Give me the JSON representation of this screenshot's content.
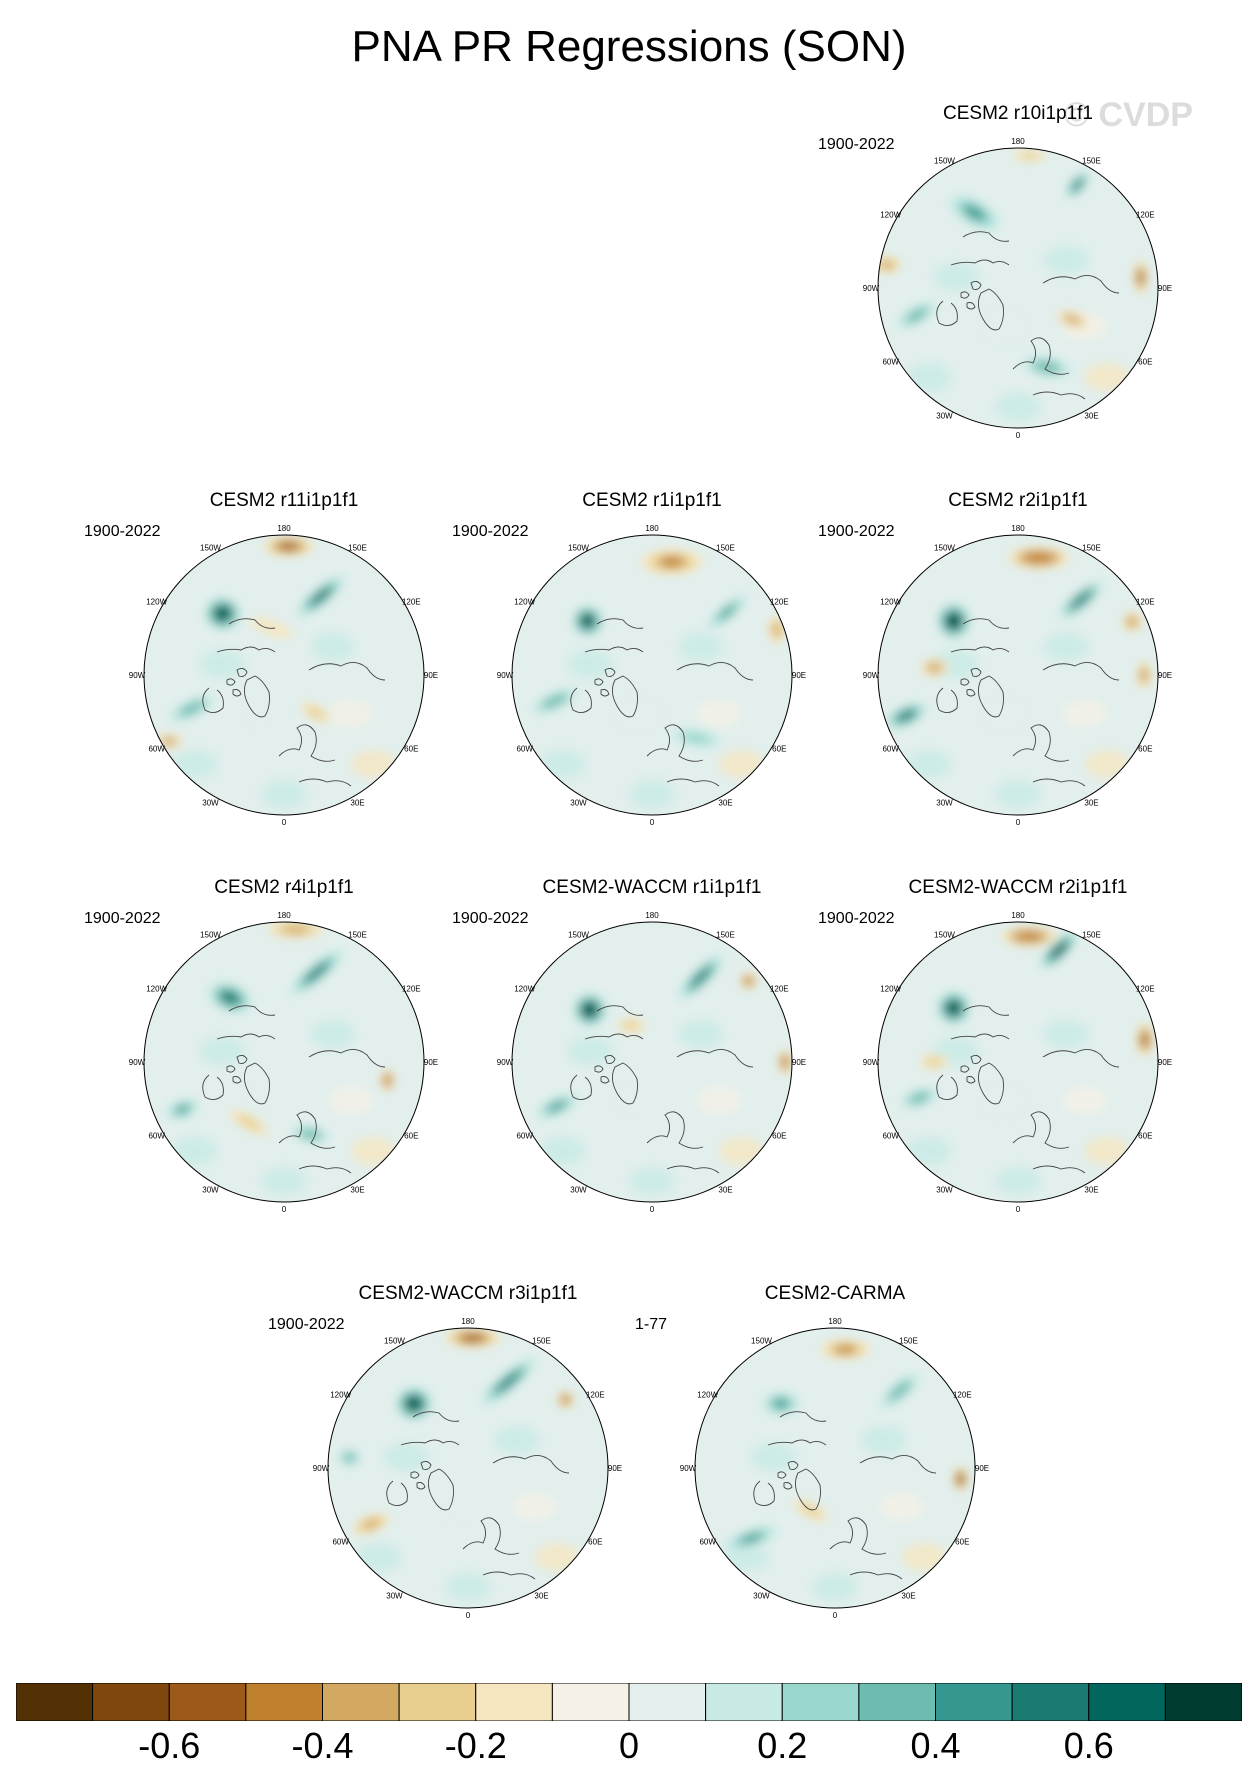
{
  "figure": {
    "title": "PNA PR Regressions (SON)",
    "watermark": "© CVDP"
  },
  "lon_labels": [
    "180",
    "150E",
    "120E",
    "90E",
    "60E",
    "30E",
    "0",
    "30W",
    "60W",
    "90W",
    "120W",
    "150W"
  ],
  "panels": [
    {
      "title": "CESM2 r10i1p1f1",
      "period": "1900-2022",
      "blobs": [
        {
          "lon": -150,
          "r": 0.62,
          "rx": 0.2,
          "ry": 0.09,
          "v": 0.45,
          "rot": 30
        },
        {
          "lon": 150,
          "r": 0.85,
          "rx": 0.12,
          "ry": 0.05,
          "v": 0.55,
          "rot": -50
        },
        {
          "lon": 95,
          "r": 0.88,
          "rx": 0.05,
          "ry": 0.12,
          "v": -0.55,
          "rot": 0
        },
        {
          "lon": 60,
          "r": 0.45,
          "rx": 0.12,
          "ry": 0.05,
          "v": -0.35,
          "rot": 20
        },
        {
          "lon": -75,
          "r": 0.75,
          "rx": 0.16,
          "ry": 0.06,
          "v": 0.3,
          "rot": -30
        },
        {
          "lon": 20,
          "r": 0.6,
          "rx": 0.18,
          "ry": 0.07,
          "v": 0.3,
          "rot": 10
        },
        {
          "lon": -100,
          "r": 0.95,
          "rx": 0.1,
          "ry": 0.06,
          "v": -0.4,
          "rot": 0
        },
        {
          "lon": 175,
          "r": 0.95,
          "rx": 0.12,
          "ry": 0.04,
          "v": -0.25,
          "rot": 0
        }
      ]
    },
    {
      "title": "CESM2 r11i1p1f1",
      "period": "1900-2022",
      "blobs": [
        {
          "lon": -135,
          "r": 0.62,
          "rx": 0.13,
          "ry": 0.12,
          "v": 0.75,
          "rot": 0
        },
        {
          "lon": 155,
          "r": 0.62,
          "rx": 0.22,
          "ry": 0.06,
          "v": 0.65,
          "rot": -40
        },
        {
          "lon": 178,
          "r": 0.92,
          "rx": 0.18,
          "ry": 0.07,
          "v": -0.55,
          "rot": 0
        },
        {
          "lon": -70,
          "r": 0.7,
          "rx": 0.18,
          "ry": 0.06,
          "v": 0.35,
          "rot": -25
        },
        {
          "lon": 40,
          "r": 0.35,
          "rx": 0.12,
          "ry": 0.05,
          "v": -0.3,
          "rot": 30
        },
        {
          "lon": -60,
          "r": 0.95,
          "rx": 0.1,
          "ry": 0.05,
          "v": -0.35,
          "rot": 0
        },
        {
          "lon": -165,
          "r": 0.35,
          "rx": 0.16,
          "ry": 0.05,
          "v": -0.2,
          "rot": 20
        }
      ]
    },
    {
      "title": "CESM2 r1i1p1f1",
      "period": "1900-2022",
      "blobs": [
        {
          "lon": -130,
          "r": 0.6,
          "rx": 0.11,
          "ry": 0.11,
          "v": 0.7,
          "rot": 0
        },
        {
          "lon": 170,
          "r": 0.82,
          "rx": 0.22,
          "ry": 0.09,
          "v": -0.45,
          "rot": 0
        },
        {
          "lon": 130,
          "r": 0.7,
          "rx": 0.18,
          "ry": 0.05,
          "v": 0.45,
          "rot": -40
        },
        {
          "lon": 110,
          "r": 0.95,
          "rx": 0.06,
          "ry": 0.1,
          "v": -0.4,
          "rot": 0
        },
        {
          "lon": -75,
          "r": 0.72,
          "rx": 0.18,
          "ry": 0.06,
          "v": 0.35,
          "rot": -25
        },
        {
          "lon": 35,
          "r": 0.55,
          "rx": 0.18,
          "ry": 0.06,
          "v": 0.25,
          "rot": 10
        }
      ]
    },
    {
      "title": "CESM2 r2i1p1f1",
      "period": "1900-2022",
      "blobs": [
        {
          "lon": -130,
          "r": 0.6,
          "rx": 0.12,
          "ry": 0.13,
          "v": 0.8,
          "rot": 0
        },
        {
          "lon": 170,
          "r": 0.85,
          "rx": 0.22,
          "ry": 0.08,
          "v": -0.5,
          "rot": 0
        },
        {
          "lon": 140,
          "r": 0.7,
          "rx": 0.2,
          "ry": 0.06,
          "v": 0.5,
          "rot": -40
        },
        {
          "lon": 115,
          "r": 0.9,
          "rx": 0.07,
          "ry": 0.07,
          "v": -0.45,
          "rot": 0
        },
        {
          "lon": 90,
          "r": 0.9,
          "rx": 0.05,
          "ry": 0.1,
          "v": -0.45,
          "rot": 0
        },
        {
          "lon": -70,
          "r": 0.85,
          "rx": 0.16,
          "ry": 0.07,
          "v": 0.55,
          "rot": -25
        },
        {
          "lon": -95,
          "r": 0.6,
          "rx": 0.1,
          "ry": 0.06,
          "v": -0.35,
          "rot": 0
        }
      ]
    },
    {
      "title": "CESM2 r4i1p1f1",
      "period": "1900-2022",
      "blobs": [
        {
          "lon": -140,
          "r": 0.6,
          "rx": 0.16,
          "ry": 0.1,
          "v": 0.6,
          "rot": 20
        },
        {
          "lon": 160,
          "r": 0.68,
          "rx": 0.24,
          "ry": 0.06,
          "v": 0.55,
          "rot": -40
        },
        {
          "lon": 175,
          "r": 0.95,
          "rx": 0.2,
          "ry": 0.06,
          "v": -0.4,
          "rot": 0
        },
        {
          "lon": 80,
          "r": 0.75,
          "rx": 0.05,
          "ry": 0.08,
          "v": -0.5,
          "rot": 0
        },
        {
          "lon": -65,
          "r": 0.8,
          "rx": 0.12,
          "ry": 0.06,
          "v": 0.45,
          "rot": -20
        },
        {
          "lon": -30,
          "r": 0.5,
          "rx": 0.16,
          "ry": 0.05,
          "v": -0.3,
          "rot": 30
        },
        {
          "lon": 20,
          "r": 0.55,
          "rx": 0.14,
          "ry": 0.06,
          "v": 0.3,
          "rot": 10
        }
      ]
    },
    {
      "title": "CESM2-WACCM r1i1p1f1",
      "period": "1900-2022",
      "blobs": [
        {
          "lon": -130,
          "r": 0.58,
          "rx": 0.12,
          "ry": 0.12,
          "v": 0.8,
          "rot": 0
        },
        {
          "lon": 150,
          "r": 0.7,
          "rx": 0.22,
          "ry": 0.06,
          "v": 0.55,
          "rot": -45
        },
        {
          "lon": 130,
          "r": 0.9,
          "rx": 0.06,
          "ry": 0.06,
          "v": -0.5,
          "rot": 0
        },
        {
          "lon": 90,
          "r": 0.95,
          "rx": 0.05,
          "ry": 0.09,
          "v": -0.5,
          "rot": 0
        },
        {
          "lon": -65,
          "r": 0.75,
          "rx": 0.16,
          "ry": 0.06,
          "v": 0.4,
          "rot": -25
        },
        {
          "lon": -150,
          "r": 0.3,
          "rx": 0.1,
          "ry": 0.05,
          "v": -0.3,
          "rot": 0
        }
      ]
    },
    {
      "title": "CESM2-WACCM r2i1p1f1",
      "period": "1900-2022",
      "blobs": [
        {
          "lon": -130,
          "r": 0.6,
          "rx": 0.12,
          "ry": 0.12,
          "v": 0.75,
          "rot": 0
        },
        {
          "lon": 160,
          "r": 0.85,
          "rx": 0.18,
          "ry": 0.06,
          "v": 0.7,
          "rot": -45
        },
        {
          "lon": 175,
          "r": 0.9,
          "rx": 0.2,
          "ry": 0.07,
          "v": -0.5,
          "rot": 0
        },
        {
          "lon": 100,
          "r": 0.92,
          "rx": 0.06,
          "ry": 0.12,
          "v": -0.55,
          "rot": 0
        },
        {
          "lon": -70,
          "r": 0.75,
          "rx": 0.14,
          "ry": 0.06,
          "v": 0.35,
          "rot": -20
        },
        {
          "lon": -90,
          "r": 0.6,
          "rx": 0.1,
          "ry": 0.05,
          "v": -0.3,
          "rot": 0
        }
      ]
    },
    {
      "title": "CESM2-WACCM r3i1p1f1",
      "period": "1900-2022",
      "blobs": [
        {
          "lon": -140,
          "r": 0.6,
          "rx": 0.13,
          "ry": 0.12,
          "v": 0.75,
          "rot": 0
        },
        {
          "lon": 155,
          "r": 0.68,
          "rx": 0.25,
          "ry": 0.06,
          "v": 0.6,
          "rot": -40
        },
        {
          "lon": 178,
          "r": 0.93,
          "rx": 0.2,
          "ry": 0.07,
          "v": -0.55,
          "rot": 0
        },
        {
          "lon": 125,
          "r": 0.85,
          "rx": 0.06,
          "ry": 0.06,
          "v": -0.5,
          "rot": 0
        },
        {
          "lon": -60,
          "r": 0.8,
          "rx": 0.14,
          "ry": 0.06,
          "v": -0.4,
          "rot": -20
        },
        {
          "lon": -95,
          "r": 0.85,
          "rx": 0.08,
          "ry": 0.06,
          "v": 0.35,
          "rot": 0
        }
      ]
    },
    {
      "title": "CESM2-CARMA",
      "period": "1-77",
      "blobs": [
        {
          "lon": -140,
          "r": 0.6,
          "rx": 0.13,
          "ry": 0.08,
          "v": 0.45,
          "rot": 0
        },
        {
          "lon": 175,
          "r": 0.85,
          "rx": 0.18,
          "ry": 0.07,
          "v": -0.45,
          "rot": 0
        },
        {
          "lon": 140,
          "r": 0.72,
          "rx": 0.18,
          "ry": 0.06,
          "v": 0.35,
          "rot": -40
        },
        {
          "lon": 85,
          "r": 0.9,
          "rx": 0.05,
          "ry": 0.09,
          "v": -0.7,
          "rot": 0
        },
        {
          "lon": -50,
          "r": 0.78,
          "rx": 0.2,
          "ry": 0.06,
          "v": 0.45,
          "rot": -20
        },
        {
          "lon": -30,
          "r": 0.35,
          "rx": 0.14,
          "ry": 0.05,
          "v": -0.25,
          "rot": 30
        }
      ]
    }
  ],
  "colorbar": {
    "colors": [
      "#543005",
      "#7f470e",
      "#9b5a1a",
      "#bf812d",
      "#d2a863",
      "#e9cf8f",
      "#f6e6c0",
      "#f5f1e6",
      "#e2efed",
      "#c7eae5",
      "#99d7cd",
      "#6dbcb1",
      "#35978f",
      "#1b7a71",
      "#01665e",
      "#003c30"
    ],
    "tick_labels": [
      "-0.6",
      "-0.4",
      "-0.2",
      "0",
      "0.2",
      "0.4",
      "0.6"
    ],
    "min": -0.8,
    "max": 0.8,
    "step": 0.1
  }
}
